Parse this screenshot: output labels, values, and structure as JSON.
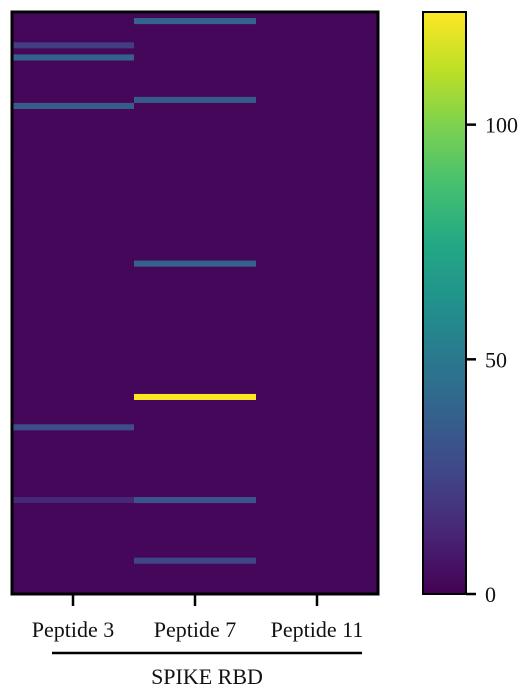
{
  "chart_data": {
    "type": "heatmap",
    "title": "",
    "xlabel": "",
    "ylabel": "",
    "columns": [
      "Peptide 3",
      "Peptide 7",
      "Peptide 11"
    ],
    "group_label": "SPIKE RBD",
    "row_count": 96,
    "background_value": 2,
    "highlights": [
      {
        "column": 0,
        "row": 5,
        "value": 22
      },
      {
        "column": 0,
        "row": 7,
        "value": 38
      },
      {
        "column": 0,
        "row": 15,
        "value": 36
      },
      {
        "column": 0,
        "row": 68,
        "value": 30
      },
      {
        "column": 0,
        "row": 80,
        "value": 14
      },
      {
        "column": 1,
        "row": 1,
        "value": 40
      },
      {
        "column": 1,
        "row": 14,
        "value": 36
      },
      {
        "column": 1,
        "row": 41,
        "value": 38
      },
      {
        "column": 1,
        "row": 63,
        "value": 124
      },
      {
        "column": 1,
        "row": 80,
        "value": 32
      },
      {
        "column": 1,
        "row": 90,
        "value": 26
      }
    ],
    "colorbar": {
      "min": 0,
      "max": 124,
      "ticks": [
        0,
        50,
        100
      ],
      "colormap": "viridis"
    }
  }
}
